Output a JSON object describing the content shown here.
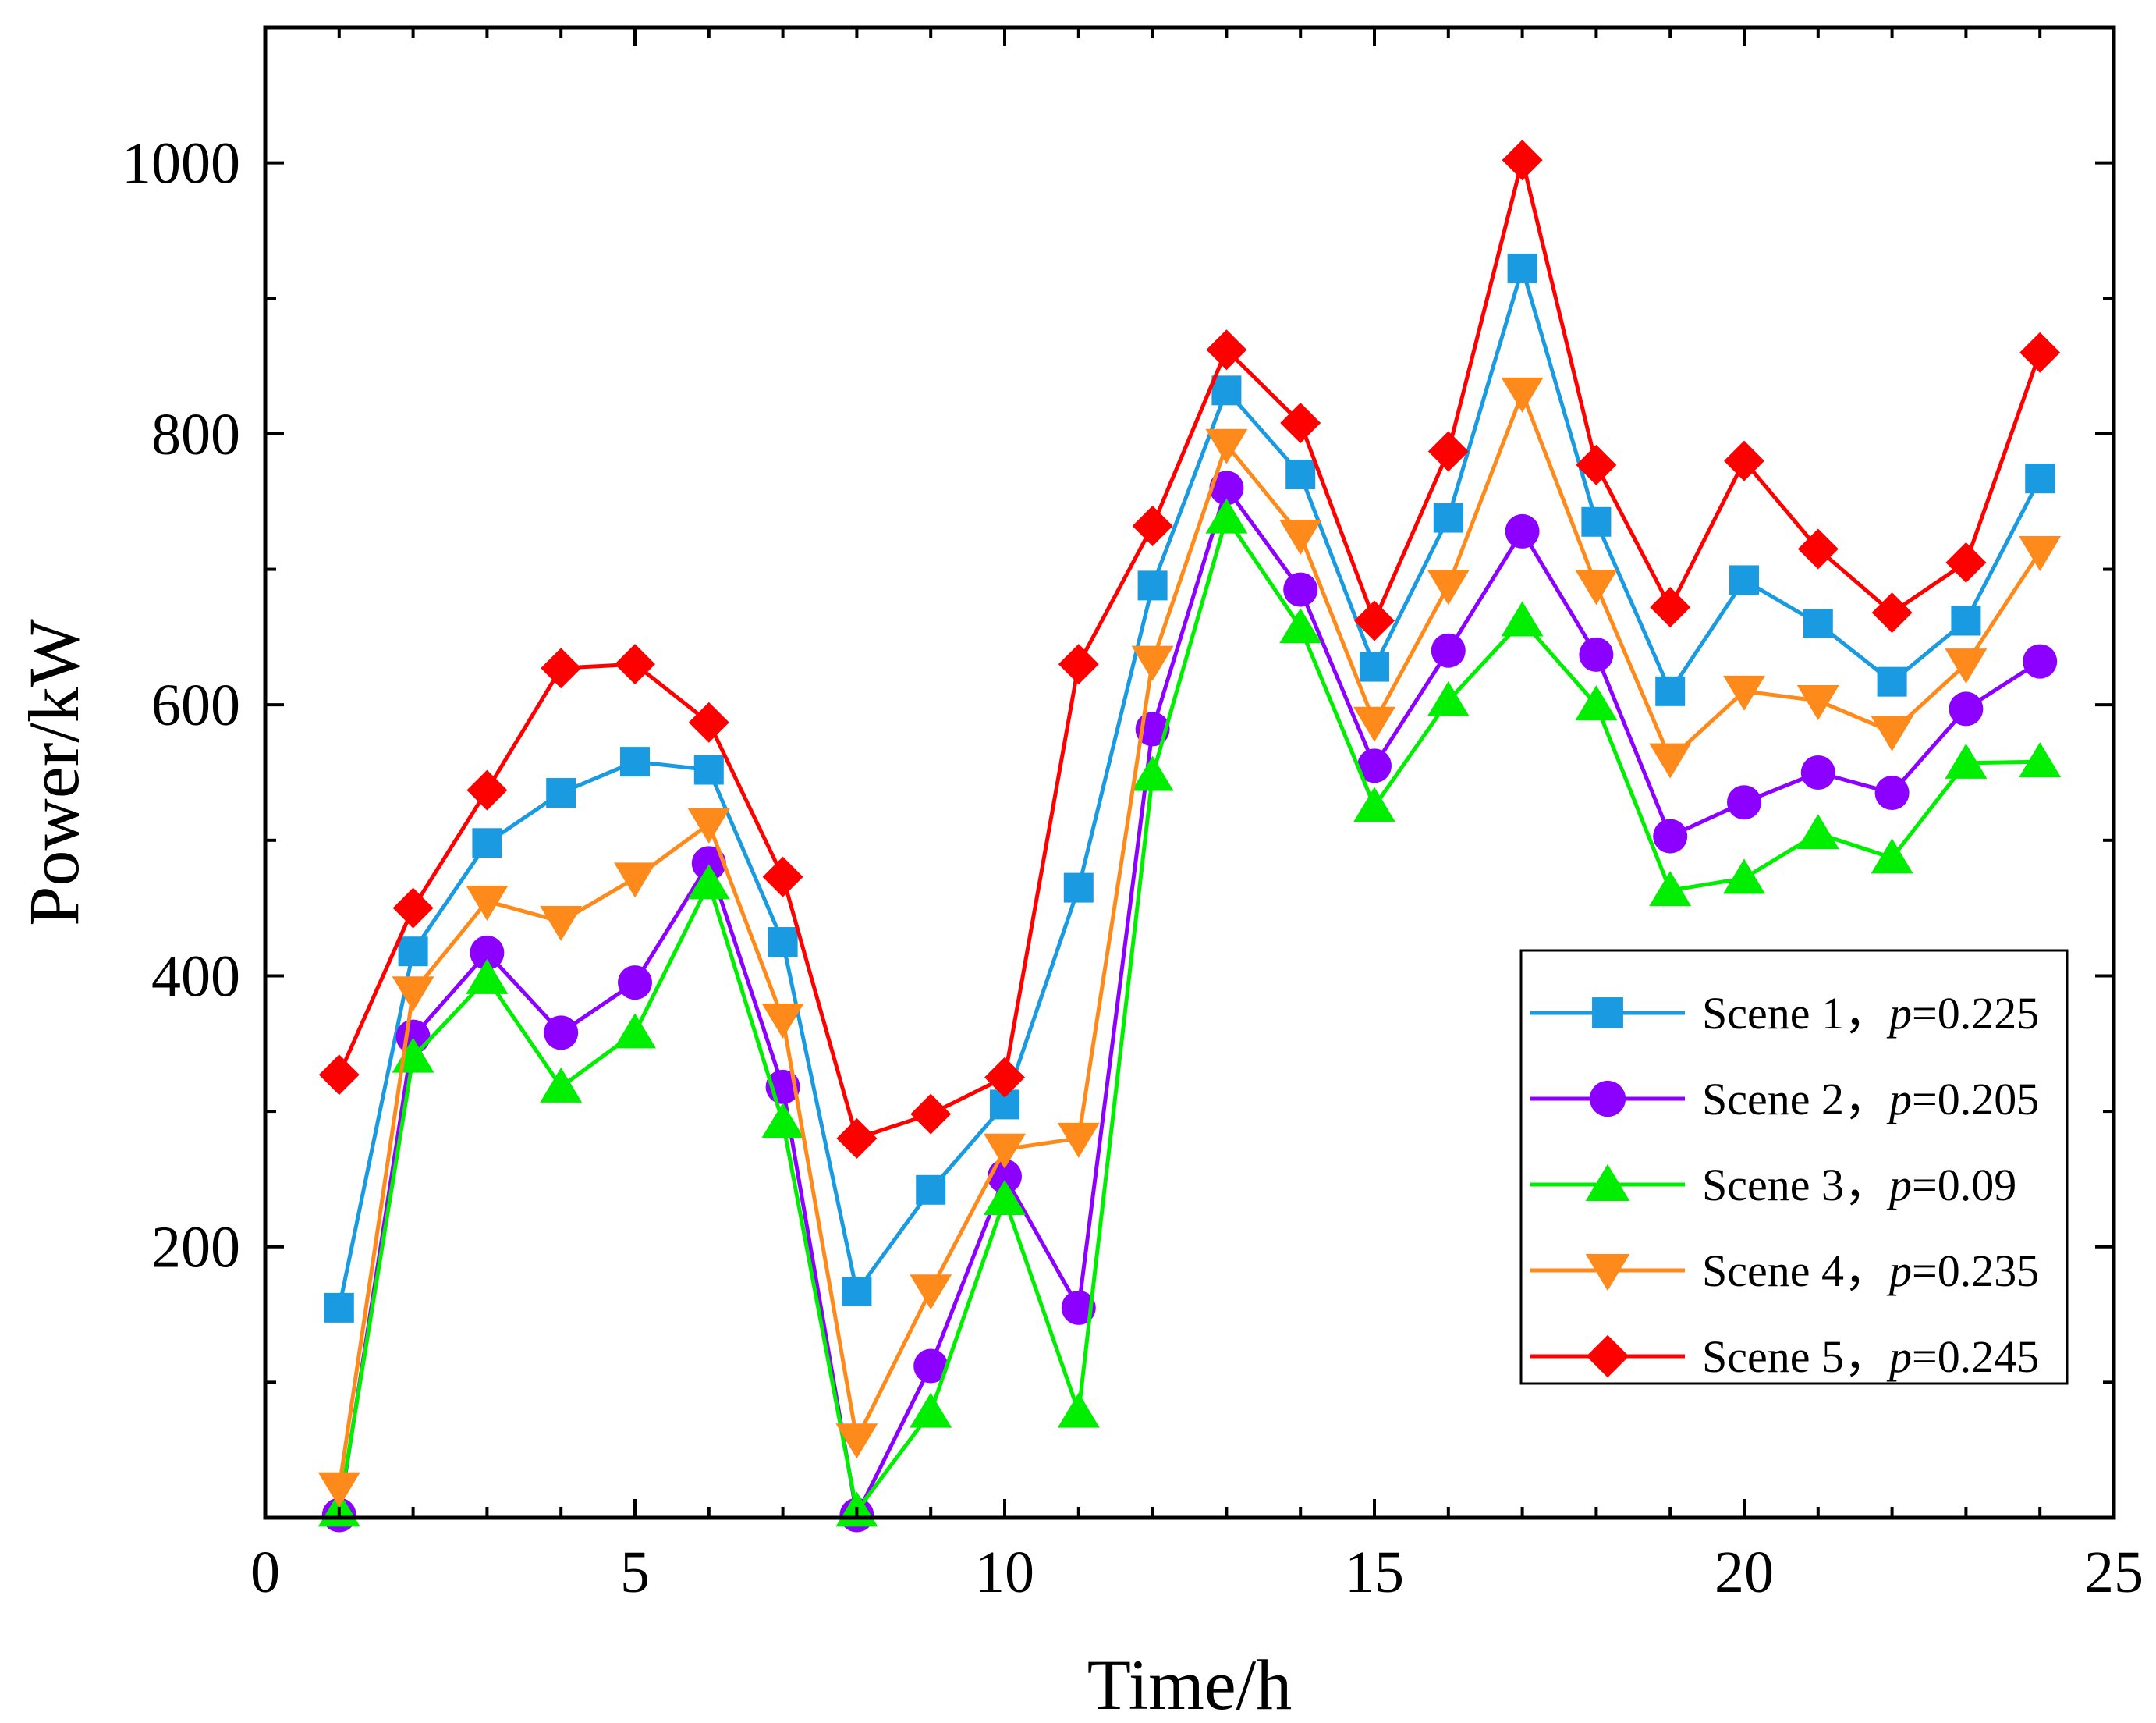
{
  "chart_data": {
    "type": "line",
    "title": "",
    "xlabel": "Time/h",
    "ylabel": "Power/kW",
    "xlim": [
      0,
      25
    ],
    "ylim": [
      0,
      1100
    ],
    "xticks": [
      0,
      5,
      10,
      15,
      20,
      25
    ],
    "yticks": [
      200,
      400,
      600,
      800,
      1000
    ],
    "x": [
      1,
      2,
      3,
      4,
      5,
      6,
      7,
      8,
      9,
      10,
      11,
      12,
      13,
      14,
      15,
      16,
      17,
      18,
      19,
      20,
      21,
      22,
      23,
      24
    ],
    "grid": false,
    "legend_position": "bottom-right",
    "series": [
      {
        "name": "Scene 1",
        "prob_label": "p",
        "prob_value": "=0.225",
        "color": "#1a9ae0",
        "marker": "square",
        "values": [
          155,
          418,
          498,
          535,
          558,
          552,
          425,
          167,
          242,
          305,
          465,
          688,
          832,
          770,
          628,
          738,
          922,
          735,
          610,
          692,
          660,
          617,
          662,
          767
        ]
      },
      {
        "name": "Scene 2",
        "prob_label": "p",
        "prob_value": "=0.205",
        "color": "#8b00ff",
        "marker": "circle",
        "values": [
          2,
          355,
          417,
          358,
          395,
          483,
          318,
          2,
          112,
          252,
          155,
          582,
          760,
          685,
          555,
          640,
          728,
          637,
          503,
          528,
          550,
          535,
          597,
          632
        ]
      },
      {
        "name": "Scene 3",
        "prob_label": "p",
        "prob_value": "=0.09",
        "color": "#00ee00",
        "marker": "triangle-up",
        "values": [
          5,
          340,
          398,
          318,
          358,
          468,
          292,
          5,
          78,
          235,
          78,
          548,
          738,
          657,
          525,
          603,
          662,
          600,
          463,
          472,
          505,
          487,
          557,
          558
        ]
      },
      {
        "name": "Scene 4",
        "prob_label": "p",
        "prob_value": "=0.235",
        "color": "#ff8a1c",
        "marker": "triangle-down",
        "values": [
          22,
          388,
          455,
          440,
          472,
          512,
          368,
          58,
          168,
          272,
          280,
          632,
          792,
          725,
          587,
          688,
          830,
          688,
          560,
          610,
          603,
          580,
          630,
          713
        ]
      },
      {
        "name": "Scene 5",
        "prob_label": "p",
        "prob_value": "=0.245",
        "color": "#ff0000",
        "marker": "diamond",
        "values": [
          327,
          450,
          537,
          627,
          630,
          587,
          473,
          280,
          298,
          325,
          630,
          732,
          862,
          808,
          662,
          787,
          1002,
          777,
          672,
          780,
          715,
          668,
          705,
          860
        ]
      }
    ]
  }
}
